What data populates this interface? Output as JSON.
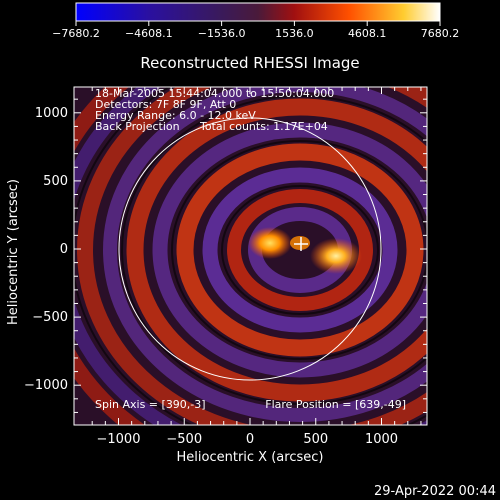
{
  "colorbar": {
    "ticks": [
      "−7680.2",
      "−4608.1",
      "−1536.0",
      "1536.0",
      "4608.1",
      "7680.2"
    ]
  },
  "title": "Reconstructed RHESSI Image",
  "info": {
    "line1": "18-Mar-2005 15:44:04.000 to 15:50:04.000",
    "line2": "Detectors: 7F 8F 9F, Att 0",
    "line3": "Energy Range: 6.0 - 12.0 keV",
    "line4_left": "Back Projection",
    "line4_right": "Total counts: 1.17E+04"
  },
  "spin_axis": "Spin Axis = [390,-3]",
  "flare_position": "Flare Position = [639,-49]",
  "axes": {
    "xlabel": "Heliocentric X (arcsec)",
    "ylabel": "Heliocentric Y (arcsec)",
    "xticks": [
      "−1000",
      "−500",
      "0",
      "500",
      "1000"
    ],
    "yticks": [
      "1000",
      "500",
      "0",
      "−500",
      "−1000"
    ]
  },
  "timestamp": "29-Apr-2022 00:44",
  "colors": {
    "background": "#000000",
    "plot_dark": "#1a0a1e",
    "purple": "#5a2a8a",
    "red": "#d02010",
    "orange": "#ff8800",
    "yellow": "#ffee40",
    "axis": "#ffffff"
  }
}
